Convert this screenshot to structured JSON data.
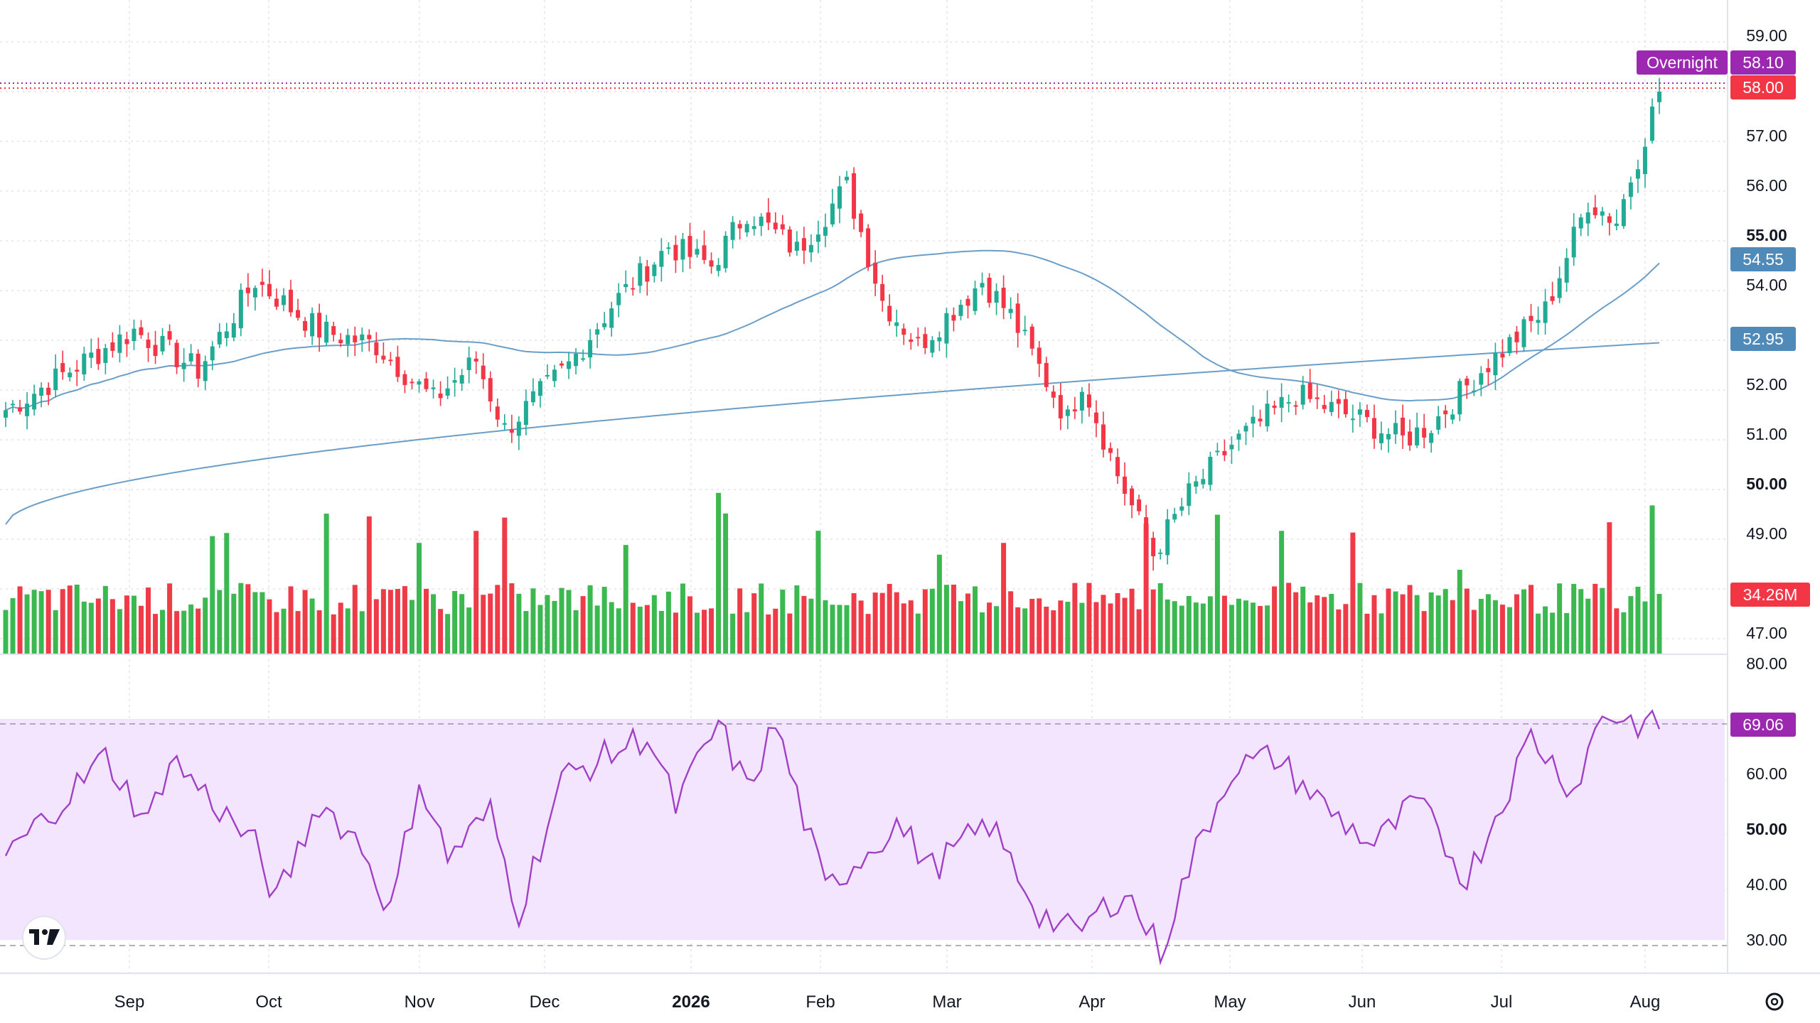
{
  "colors": {
    "up": "#22ab94",
    "down": "#f23645",
    "vol_up": "#3cb850",
    "vol_down": "#ef3b48",
    "ma_line": "#6a9ec9",
    "ma_label": "#4f8ab8",
    "overnight": "#9c27b0",
    "rsi": "#a040c8",
    "rsi_band": "#f3e5fd",
    "grid": "#e0e3eb",
    "axis_text": "#131722"
  },
  "price_axis": {
    "ticks": [
      "59.00",
      "57.00",
      "56.00",
      "55.00",
      "54.00",
      "52.00",
      "51.00",
      "50.00",
      "49.00",
      "47.00"
    ],
    "bold_ticks": [
      "55.00",
      "50.00"
    ]
  },
  "rsi_axis": {
    "ticks": [
      "80.00",
      "60.00",
      "50.00",
      "40.00",
      "30.00"
    ],
    "bold_ticks": [
      "50.00"
    ]
  },
  "labels": {
    "overnight_text": "Overnight",
    "overnight_price": "58.10",
    "last_price": "58.00",
    "ma_fast": "54.55",
    "ma_slow": "52.95",
    "volume": "34.26M",
    "rsi": "69.06"
  },
  "time_axis": {
    "months": [
      "Sep",
      "Oct",
      "Nov",
      "Dec",
      "2026",
      "Feb",
      "Mar",
      "Apr",
      "May",
      "Jun",
      "Jul",
      "Aug"
    ],
    "bold": [
      "2026"
    ]
  },
  "chart_data": {
    "type": "candlestick",
    "x_range": [
      "2025-08",
      "2026-08"
    ],
    "ylim": [
      46.7,
      59.4
    ],
    "anchors": {
      "close_dates_index": [
        0,
        18,
        27,
        35,
        44,
        52,
        60,
        66,
        70,
        79,
        85,
        93,
        99,
        104,
        111,
        118,
        123,
        128,
        137,
        141,
        149,
        151,
        156,
        161,
        166,
        172,
        181,
        190,
        196,
        200,
        207,
        216,
        222,
        226,
        232
      ],
      "close_values": [
        51.6,
        53.2,
        52.4,
        54.2,
        53.2,
        52.9,
        51.8,
        52.6,
        51.2,
        52.5,
        53.7,
        54.9,
        54.5,
        55.6,
        54.8,
        56.1,
        53.8,
        52.9,
        54.2,
        53.5,
        51.4,
        52.2,
        50.3,
        48.7,
        49.9,
        50.9,
        51.9,
        51.4,
        51.0,
        51.3,
        52.4,
        53.6,
        55.8,
        55.4,
        58.0
      ]
    },
    "ma_fast_last": 54.55,
    "ma_slow_last": 52.95,
    "volume_last_m": 34.26,
    "rsi": {
      "ylim": [
        30,
        80
      ],
      "upper_band": 70,
      "lower_band": 30,
      "last": 69.06,
      "anchor_idx": [
        0,
        14,
        20,
        23,
        35,
        38,
        44,
        50,
        54,
        58,
        62,
        68,
        72,
        78,
        90,
        94,
        100,
        104,
        108,
        115,
        125,
        130,
        138,
        145,
        150,
        157,
        162,
        166,
        172,
        178,
        186,
        192,
        198,
        205,
        212,
        214,
        220,
        224,
        232
      ],
      "anchor_values": [
        46,
        64,
        52,
        64,
        48,
        38,
        56,
        48,
        36,
        60,
        46,
        54,
        36,
        60,
        68,
        55,
        70,
        58,
        70,
        40,
        52,
        44,
        52,
        36,
        32,
        40,
        29,
        44,
        62,
        64,
        54,
        48,
        56,
        42,
        62,
        68,
        58,
        72,
        69.06
      ]
    }
  }
}
